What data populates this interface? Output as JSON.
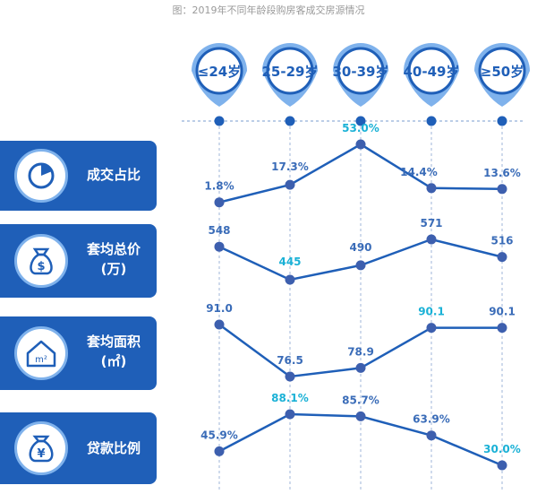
{
  "caption": "图：2019年不同年龄段购房客成交房源情况",
  "age_groups": [
    "≤24岁",
    "25-29岁",
    "30-39岁",
    "40-49岁",
    "≥50岁"
  ],
  "metrics": [
    {
      "line1": "成交占比",
      "line2": "",
      "icon": "pie-chart-icon"
    },
    {
      "line1": "套均总价",
      "line2": "(万)",
      "icon": "money-bag-icon"
    },
    {
      "line1": "套均面积",
      "line2": "(㎡)",
      "icon": "house-icon",
      "icon_text": "m²"
    },
    {
      "line1": "贷款比例",
      "line2": "",
      "icon": "yen-bag-icon",
      "icon_text": "¥"
    }
  ],
  "colors": {
    "accent": "#1f5fb8",
    "label": "#3a6cb8",
    "highlight": "#1ab1d6",
    "bubble_ring": "#7fb2ec"
  },
  "chart_data": {
    "type": "line",
    "categories": [
      "≤24岁",
      "25-29岁",
      "30-39岁",
      "40-49岁",
      "≥50岁"
    ],
    "series": [
      {
        "name": "成交占比",
        "values": [
          1.8,
          17.3,
          53.0,
          14.4,
          13.6
        ],
        "labels": [
          "1.8%",
          "17.3%",
          "53.0%",
          "14.4%",
          "13.6%"
        ],
        "highlight_index": 2
      },
      {
        "name": "套均总价(万)",
        "values": [
          548,
          445,
          490,
          571,
          516
        ],
        "labels": [
          "548",
          "445",
          "490",
          "571",
          "516"
        ],
        "highlight_index": 1
      },
      {
        "name": "套均面积(㎡)",
        "values": [
          91.0,
          76.5,
          78.9,
          90.1,
          90.1
        ],
        "labels": [
          "91.0",
          "76.5",
          "78.9",
          "90.1",
          "90.1"
        ],
        "highlight_index": 3
      },
      {
        "name": "贷款比例",
        "values": [
          45.9,
          88.1,
          85.7,
          63.9,
          30.0
        ],
        "labels": [
          "45.9%",
          "88.1%",
          "85.7%",
          "63.9%",
          "30.0%"
        ],
        "highlight_index": 1,
        "highlight_index_2": 4
      }
    ]
  }
}
